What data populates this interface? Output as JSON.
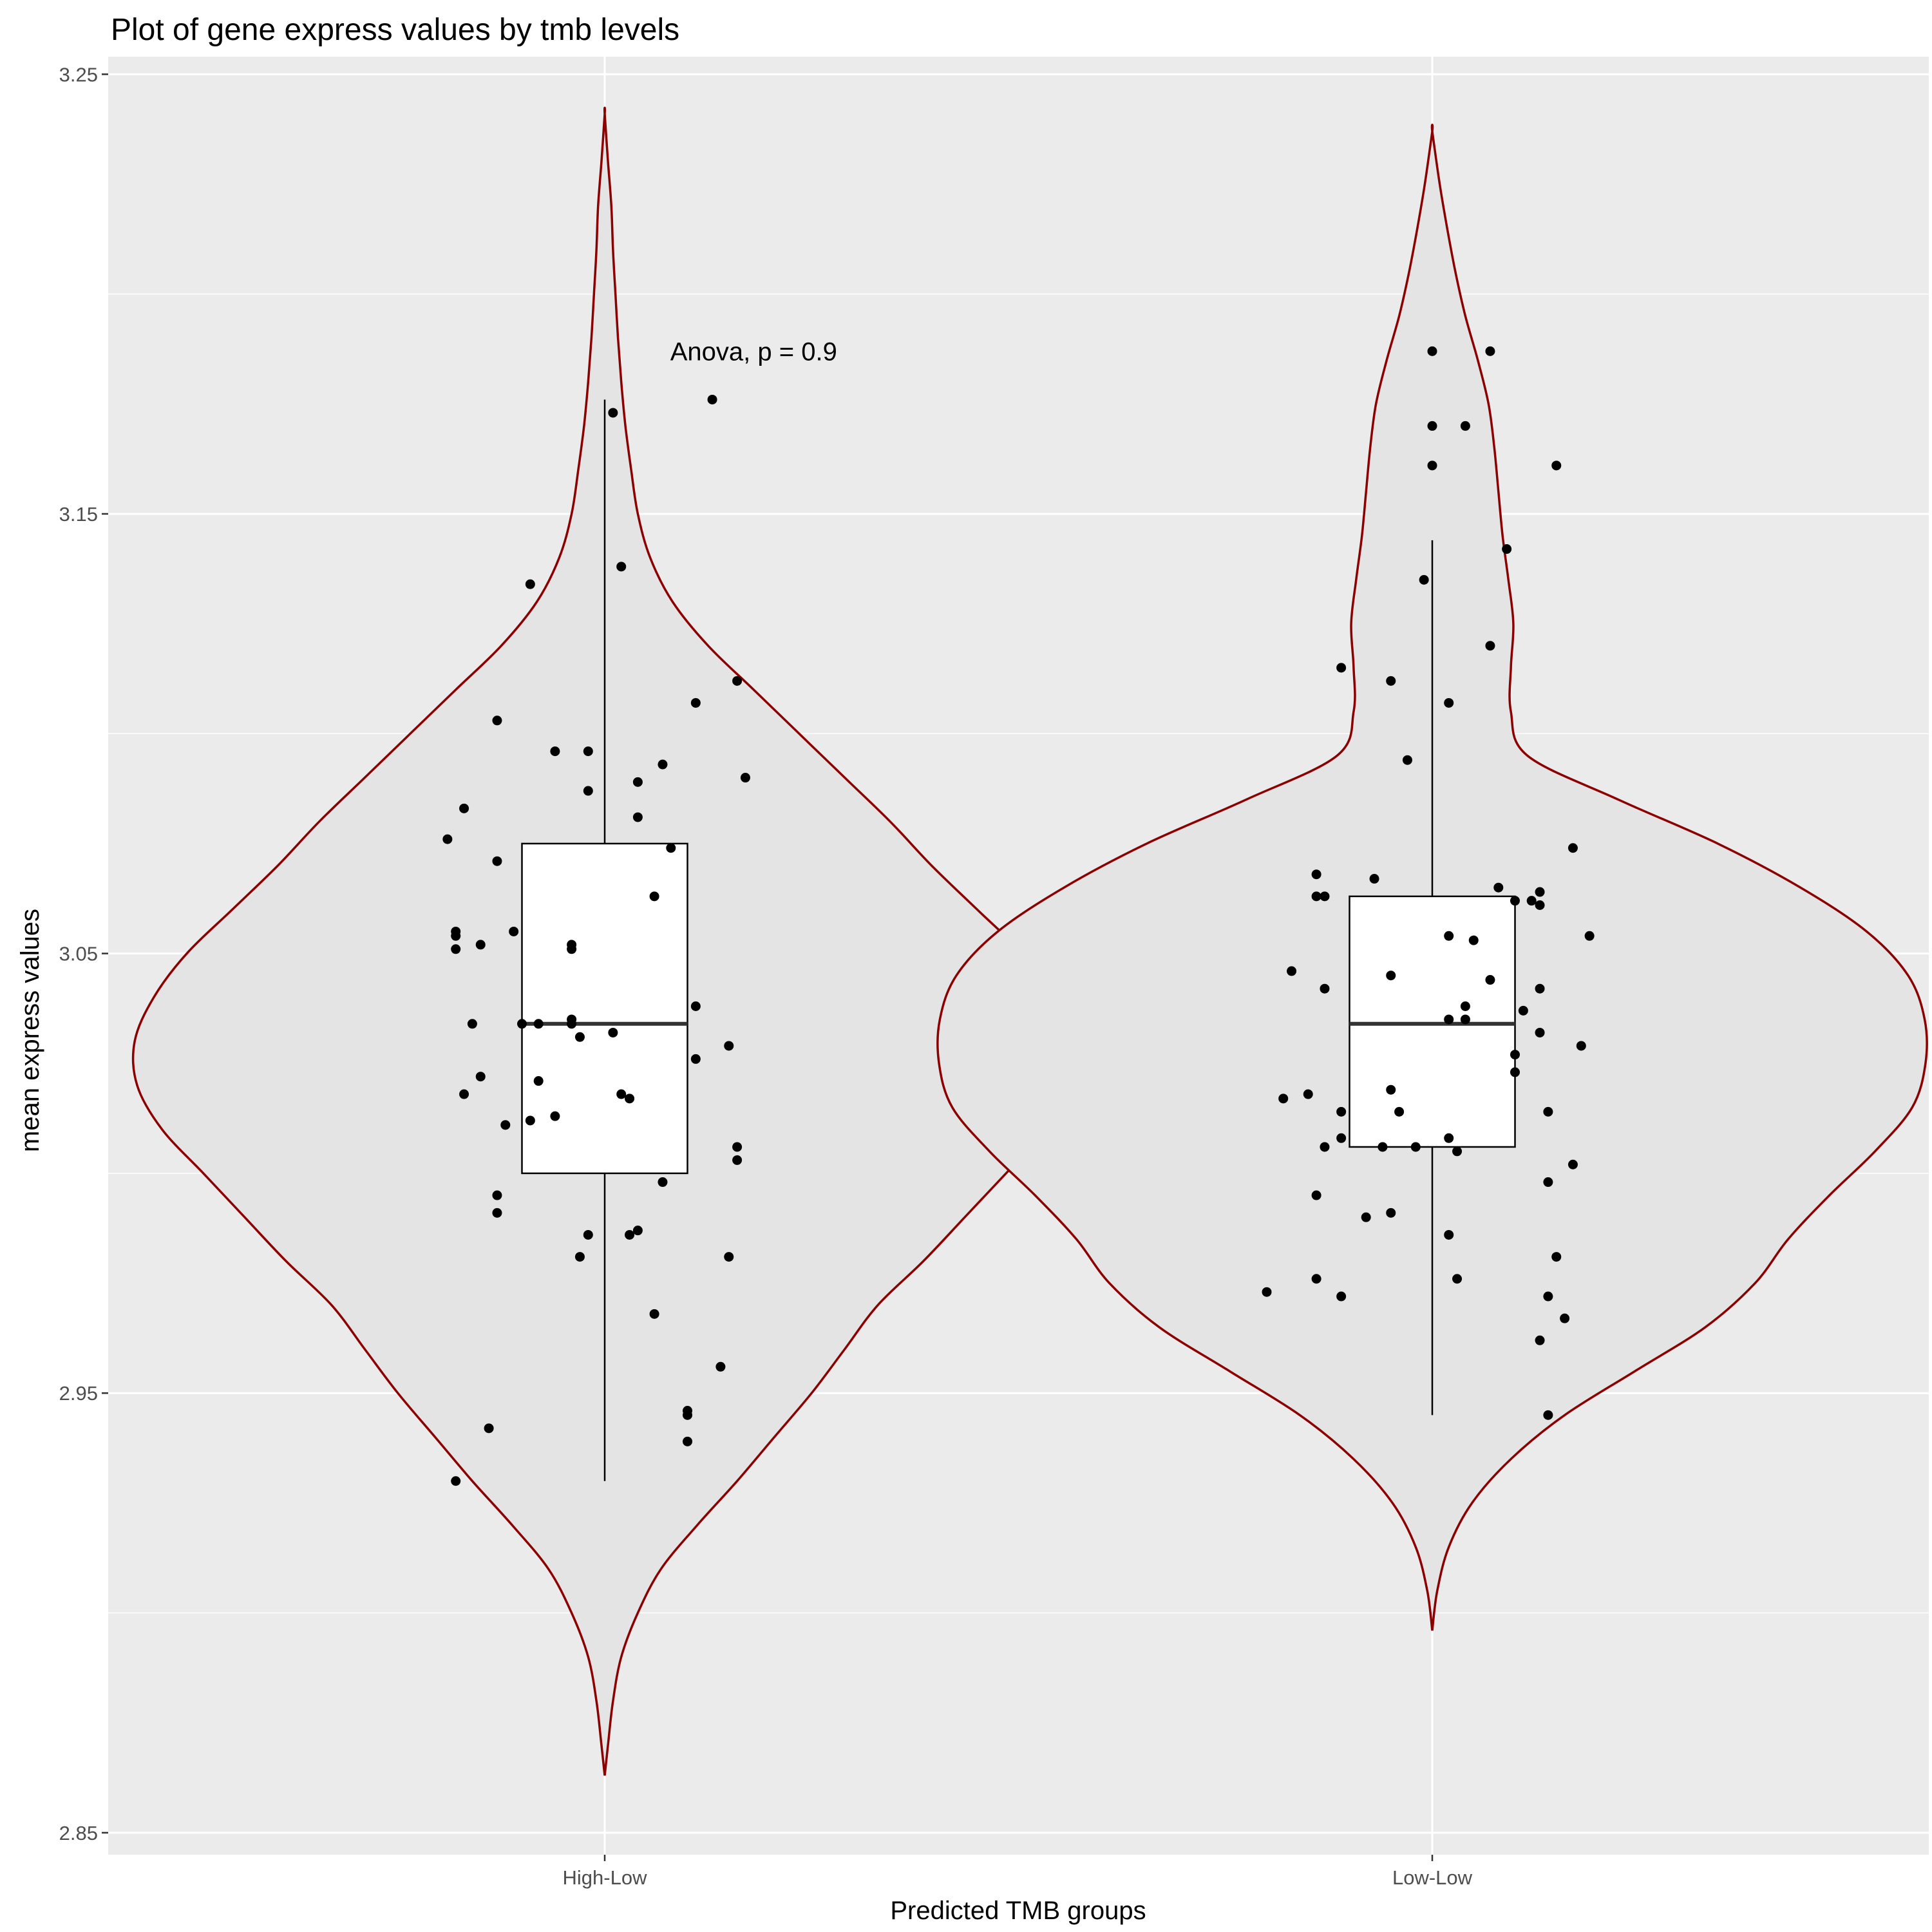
{
  "chart_data": {
    "type": "violin",
    "title": "Plot of gene express values by tmb levels",
    "xlabel": "Predicted TMB groups",
    "ylabel": "mean express values",
    "categories": [
      "High-Low",
      "Low-Low"
    ],
    "ylim": [
      2.845,
      3.254
    ],
    "yticks": [
      2.85,
      2.95,
      3.05,
      3.15,
      3.25
    ],
    "ytick_labels": [
      "2.85",
      "2.95",
      "3.05",
      "3.15",
      "3.25"
    ],
    "grid": true,
    "legend": "none",
    "annotation": "Anova, p = 0.9",
    "colors": {
      "panel": "#ebebeb",
      "grid": "#ffffff",
      "violin_fill": "#e4e4e4",
      "violin_outline": "#8b0000",
      "box_fill": "#ffffff",
      "box_line": "#000000",
      "point": "#000000"
    },
    "groups": [
      {
        "name": "High-Low",
        "box": {
          "whisker_low": 2.93,
          "q1": 3.0,
          "median": 3.034,
          "q3": 3.075,
          "whisker_high": 3.176
        },
        "violin": {
          "y": [
            2.863,
            2.87,
            2.88,
            2.89,
            2.9,
            2.91,
            2.92,
            2.93,
            2.94,
            2.95,
            2.96,
            2.97,
            2.98,
            2.99,
            3.0,
            3.01,
            3.02,
            3.03,
            3.04,
            3.05,
            3.06,
            3.07,
            3.08,
            3.09,
            3.1,
            3.11,
            3.12,
            3.13,
            3.14,
            3.15,
            3.16,
            3.17,
            3.18,
            3.19,
            3.2,
            3.21,
            3.22,
            3.23,
            3.241
          ],
          "width": [
            0.0,
            0.004,
            0.01,
            0.02,
            0.04,
            0.068,
            0.112,
            0.16,
            0.205,
            0.25,
            0.29,
            0.33,
            0.385,
            0.435,
            0.485,
            0.535,
            0.565,
            0.568,
            0.545,
            0.505,
            0.45,
            0.395,
            0.345,
            0.29,
            0.235,
            0.18,
            0.125,
            0.082,
            0.055,
            0.04,
            0.032,
            0.025,
            0.02,
            0.016,
            0.013,
            0.01,
            0.008,
            0.004,
            0.0
          ]
        },
        "points": [
          [
            0.01,
            3.173
          ],
          [
            0.13,
            3.176
          ],
          [
            0.02,
            3.138
          ],
          [
            -0.09,
            3.134
          ],
          [
            0.16,
            3.112
          ],
          [
            0.11,
            3.107
          ],
          [
            -0.13,
            3.103
          ],
          [
            -0.06,
            3.096
          ],
          [
            -0.02,
            3.096
          ],
          [
            0.07,
            3.093
          ],
          [
            0.17,
            3.09
          ],
          [
            0.04,
            3.089
          ],
          [
            -0.02,
            3.087
          ],
          [
            -0.17,
            3.083
          ],
          [
            0.04,
            3.081
          ],
          [
            -0.19,
            3.076
          ],
          [
            0.08,
            3.074
          ],
          [
            -0.13,
            3.071
          ],
          [
            0.06,
            3.063
          ],
          [
            -0.18,
            3.055
          ],
          [
            -0.18,
            3.054
          ],
          [
            -0.11,
            3.055
          ],
          [
            -0.15,
            3.052
          ],
          [
            -0.04,
            3.052
          ],
          [
            -0.18,
            3.051
          ],
          [
            -0.04,
            3.051
          ],
          [
            0.11,
            3.038
          ],
          [
            -0.16,
            3.034
          ],
          [
            -0.1,
            3.034
          ],
          [
            -0.08,
            3.034
          ],
          [
            -0.04,
            3.034
          ],
          [
            -0.03,
            3.031
          ],
          [
            -0.04,
            3.035
          ],
          [
            0.01,
            3.032
          ],
          [
            0.15,
            3.029
          ],
          [
            0.11,
            3.026
          ],
          [
            -0.15,
            3.022
          ],
          [
            -0.08,
            3.021
          ],
          [
            -0.17,
            3.018
          ],
          [
            0.02,
            3.018
          ],
          [
            0.03,
            3.017
          ],
          [
            -0.06,
            3.013
          ],
          [
            -0.12,
            3.011
          ],
          [
            -0.09,
            3.012
          ],
          [
            0.16,
            3.006
          ],
          [
            0.16,
            3.003
          ],
          [
            0.07,
            2.998
          ],
          [
            -0.13,
            2.995
          ],
          [
            -0.13,
            2.991
          ],
          [
            0.04,
            2.987
          ],
          [
            0.03,
            2.986
          ],
          [
            -0.02,
            2.986
          ],
          [
            -0.03,
            2.981
          ],
          [
            0.15,
            2.981
          ],
          [
            0.06,
            2.968
          ],
          [
            0.14,
            2.956
          ],
          [
            0.1,
            2.946
          ],
          [
            0.1,
            2.945
          ],
          [
            0.1,
            2.939
          ],
          [
            -0.14,
            2.942
          ],
          [
            -0.18,
            2.93
          ]
        ]
      },
      {
        "name": "Low-Low",
        "box": {
          "whisker_low": 2.945,
          "q1": 3.006,
          "median": 3.034,
          "q3": 3.063,
          "whisker_high": 3.144
        },
        "violin": {
          "y": [
            2.896,
            2.905,
            2.915,
            2.925,
            2.935,
            2.945,
            2.955,
            2.965,
            2.975,
            2.985,
            2.995,
            3.005,
            3.015,
            3.025,
            3.035,
            3.045,
            3.055,
            3.065,
            3.075,
            3.085,
            3.095,
            3.105,
            3.115,
            3.125,
            3.135,
            3.145,
            3.155,
            3.165,
            3.175,
            3.185,
            3.195,
            3.205,
            3.215,
            3.225,
            3.237
          ],
          "width": [
            0.0,
            0.006,
            0.02,
            0.048,
            0.095,
            0.16,
            0.245,
            0.33,
            0.39,
            0.43,
            0.48,
            0.535,
            0.58,
            0.596,
            0.595,
            0.575,
            0.525,
            0.445,
            0.345,
            0.225,
            0.115,
            0.095,
            0.095,
            0.098,
            0.092,
            0.085,
            0.08,
            0.075,
            0.068,
            0.055,
            0.04,
            0.028,
            0.018,
            0.009,
            0.0
          ]
        },
        "points": [
          [
            0.0,
            3.187
          ],
          [
            0.07,
            3.187
          ],
          [
            0.0,
            3.17
          ],
          [
            0.04,
            3.17
          ],
          [
            0.0,
            3.161
          ],
          [
            0.15,
            3.161
          ],
          [
            0.09,
            3.142
          ],
          [
            -0.01,
            3.135
          ],
          [
            0.07,
            3.12
          ],
          [
            -0.11,
            3.115
          ],
          [
            -0.05,
            3.112
          ],
          [
            0.02,
            3.107
          ],
          [
            -0.03,
            3.094
          ],
          [
            0.17,
            3.074
          ],
          [
            -0.14,
            3.068
          ],
          [
            -0.07,
            3.067
          ],
          [
            0.08,
            3.065
          ],
          [
            0.13,
            3.064
          ],
          [
            -0.14,
            3.063
          ],
          [
            -0.13,
            3.063
          ],
          [
            0.1,
            3.062
          ],
          [
            0.12,
            3.062
          ],
          [
            0.13,
            3.061
          ],
          [
            0.19,
            3.054
          ],
          [
            0.02,
            3.054
          ],
          [
            0.05,
            3.053
          ],
          [
            -0.17,
            3.046
          ],
          [
            -0.05,
            3.045
          ],
          [
            0.07,
            3.044
          ],
          [
            0.13,
            3.042
          ],
          [
            -0.13,
            3.042
          ],
          [
            0.04,
            3.038
          ],
          [
            0.11,
            3.037
          ],
          [
            0.02,
            3.035
          ],
          [
            0.04,
            3.035
          ],
          [
            0.13,
            3.032
          ],
          [
            0.18,
            3.029
          ],
          [
            0.1,
            3.027
          ],
          [
            0.1,
            3.023
          ],
          [
            -0.15,
            3.018
          ],
          [
            -0.18,
            3.017
          ],
          [
            -0.05,
            3.019
          ],
          [
            -0.04,
            3.014
          ],
          [
            -0.11,
            3.014
          ],
          [
            0.14,
            3.014
          ],
          [
            -0.11,
            3.008
          ],
          [
            -0.13,
            3.006
          ],
          [
            -0.06,
            3.006
          ],
          [
            -0.02,
            3.006
          ],
          [
            0.02,
            3.008
          ],
          [
            0.03,
            3.005
          ],
          [
            0.17,
            3.002
          ],
          [
            0.14,
            2.998
          ],
          [
            -0.14,
            2.995
          ],
          [
            -0.05,
            2.991
          ],
          [
            -0.08,
            2.99
          ],
          [
            0.02,
            2.986
          ],
          [
            0.15,
            2.981
          ],
          [
            -0.14,
            2.976
          ],
          [
            0.03,
            2.976
          ],
          [
            -0.2,
            2.973
          ],
          [
            -0.11,
            2.972
          ],
          [
            0.14,
            2.972
          ],
          [
            0.16,
            2.967
          ],
          [
            0.13,
            2.962
          ],
          [
            0.14,
            2.945
          ]
        ]
      }
    ]
  }
}
